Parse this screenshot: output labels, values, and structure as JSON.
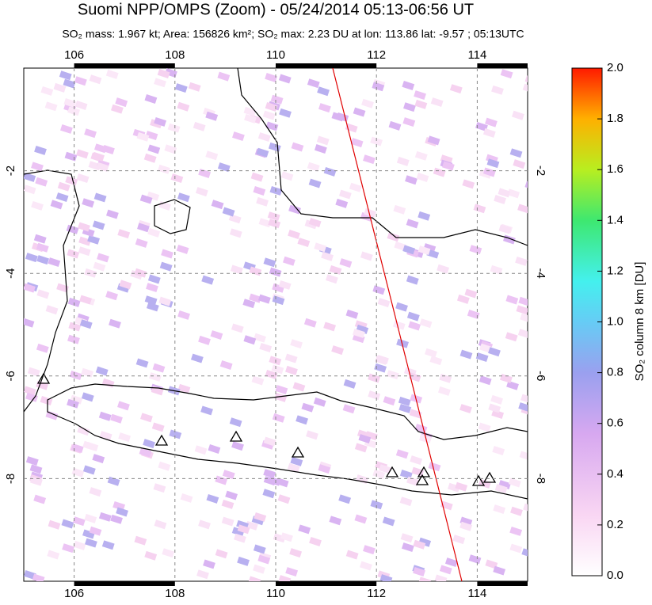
{
  "chart_data": {
    "type": "map",
    "title": "Suomi NPP/OMPS (Zoom) - 05/24/2014 05:13-06:56 UT",
    "subtitle": "SO₂ mass: 1.967 kt; Area: 156826 km²; SO₂ max: 2.23 DU at lon: 113.86 lat: -9.57 ; 05:13UTC",
    "xlim": [
      105,
      115
    ],
    "xticks": [
      106,
      108,
      110,
      112,
      114
    ],
    "ylim": [
      -10,
      0
    ],
    "yticks": [
      -2,
      -4,
      -6,
      -8
    ],
    "grid": true,
    "colorbar": {
      "label": "SO₂ column 8 km [DU]",
      "lim": [
        0,
        2
      ],
      "ticks": [
        {
          "value": 0,
          "label": "0.0"
        },
        {
          "value": 0.2,
          "label": "0.2"
        },
        {
          "value": 0.4,
          "label": "0.4"
        },
        {
          "value": 0.6,
          "label": "0.6"
        },
        {
          "value": 0.8,
          "label": "0.8"
        },
        {
          "value": 1,
          "label": "1.0"
        },
        {
          "value": 1.2,
          "label": "1.2"
        },
        {
          "value": 1.4,
          "label": "1.4"
        },
        {
          "value": 1.6,
          "label": "1.6"
        },
        {
          "value": 1.8,
          "label": "1.8"
        },
        {
          "value": 2,
          "label": "2.0"
        }
      ]
    }
  }
}
